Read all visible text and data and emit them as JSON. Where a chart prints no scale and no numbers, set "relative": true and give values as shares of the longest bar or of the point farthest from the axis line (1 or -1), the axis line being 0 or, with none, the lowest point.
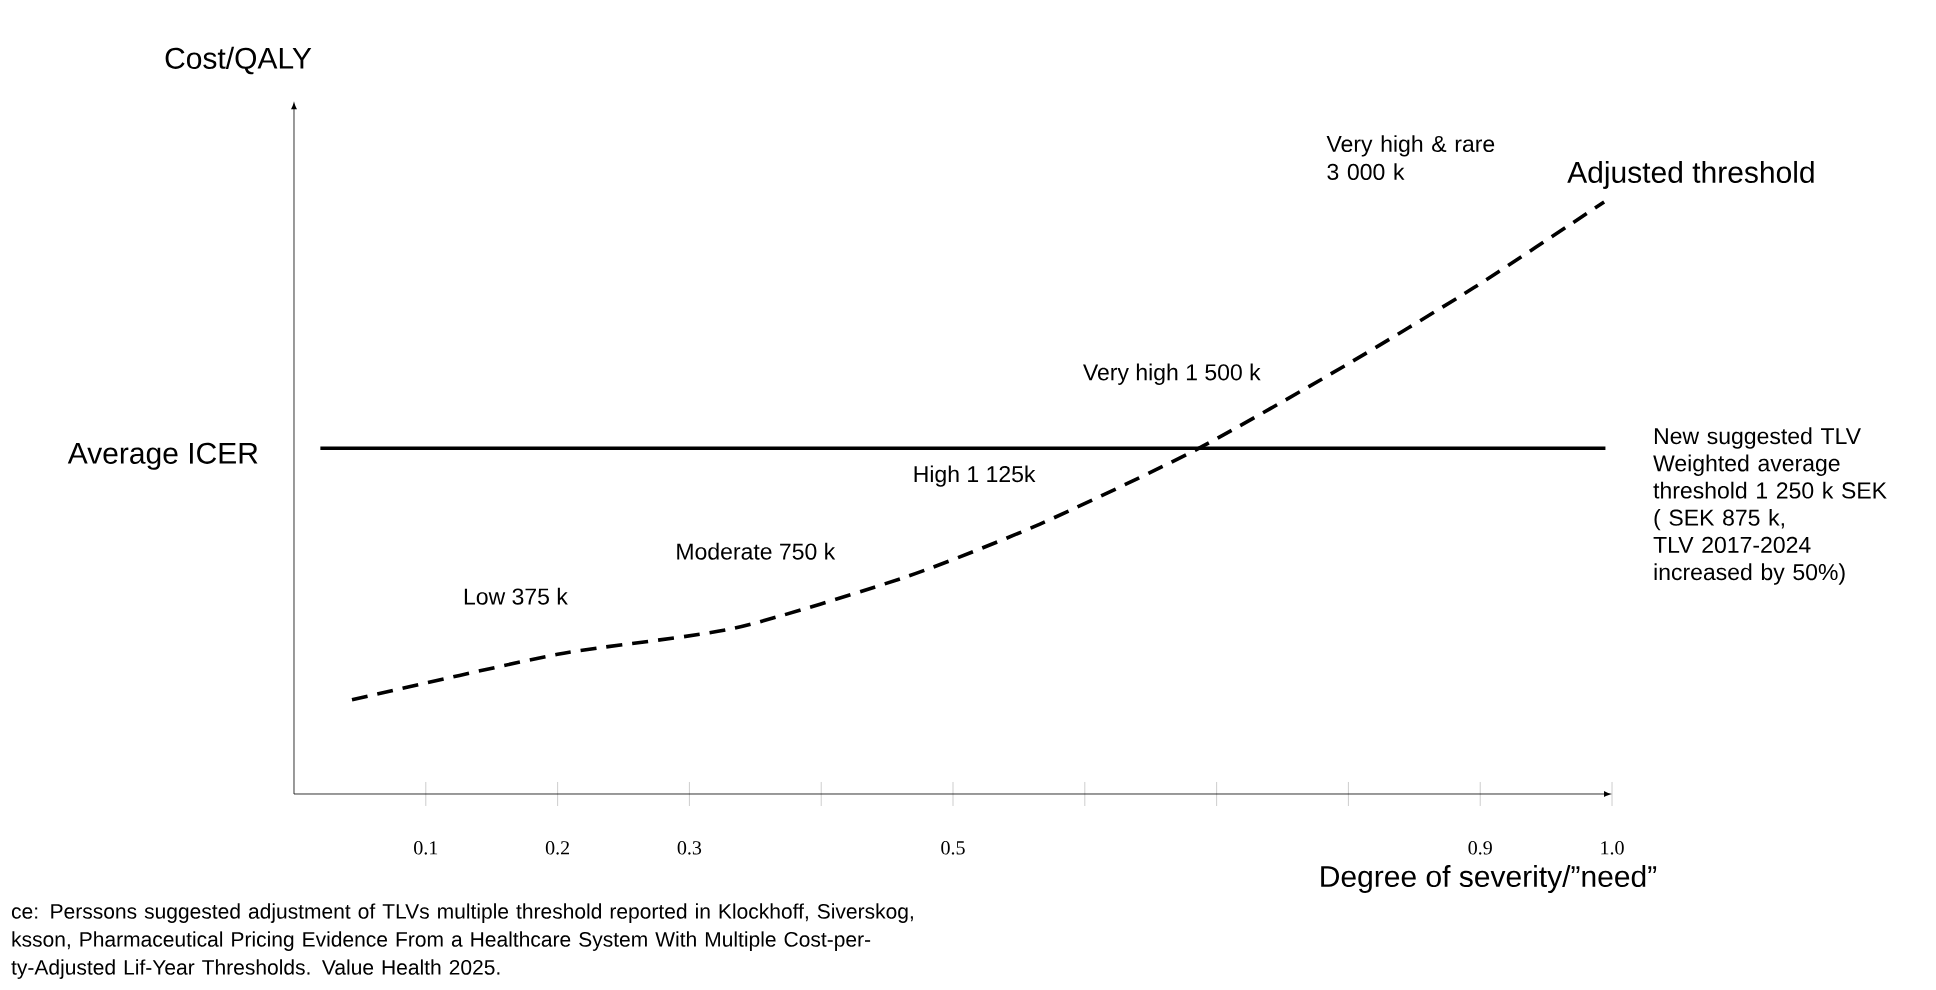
{
  "chart_data": {
    "type": "line",
    "relative": true,
    "xlabel": "Degree of severity/”need”",
    "ylabel": "Cost/QALY",
    "xlim": [
      0,
      1.0
    ],
    "xticks": [
      {
        "value": 0.1,
        "label": "0.1"
      },
      {
        "value": 0.2,
        "label": "0.2"
      },
      {
        "value": 0.3,
        "label": "0.3"
      },
      {
        "value": 0.4,
        "label": null
      },
      {
        "value": 0.5,
        "label": "0.5"
      },
      {
        "value": 0.6,
        "label": null
      },
      {
        "value": 0.7,
        "label": null
      },
      {
        "value": 0.8,
        "label": null
      },
      {
        "value": 0.9,
        "label": "0.9"
      },
      {
        "value": 1.0,
        "label": "1.0"
      }
    ],
    "series": [
      {
        "name": "Adjusted threshold",
        "color": "#000000",
        "line_style": "dashed",
        "x": [
          0.044,
          0.2,
          0.334,
          0.466,
          0.566,
          0.684,
          0.797,
          0.895,
          0.994
        ],
        "values": [
          0.159,
          0.236,
          0.28,
          0.368,
          0.456,
          0.581,
          0.723,
          0.855,
          1.0
        ]
      }
    ],
    "ref_lines": [
      {
        "axis": "y",
        "value": 0.584,
        "label": "Average ICER",
        "color": "#000000",
        "line_style": "solid"
      }
    ],
    "annotations": [
      "Low 375 k",
      "Moderate 750 k",
      "High 1 125k",
      "Very high 1 500 k",
      "Very high & rare\n3 000 k",
      "New suggested TLV\nWeighted average\nthreshold  1 250 k SEK\n( SEK 875 k,\nTLV 2017-2024\nincreased by 50%)",
      "ce: Perssons suggested adjustment of TLVs multiple threshold reported in Klockhoff, Siverskog,\nksson, Pharmaceutical Pricing Evidence From a Healthcare System With Multiple Cost-per-\nty-Adjusted Lif-Year Thresholds. Value Health 2025."
    ]
  }
}
